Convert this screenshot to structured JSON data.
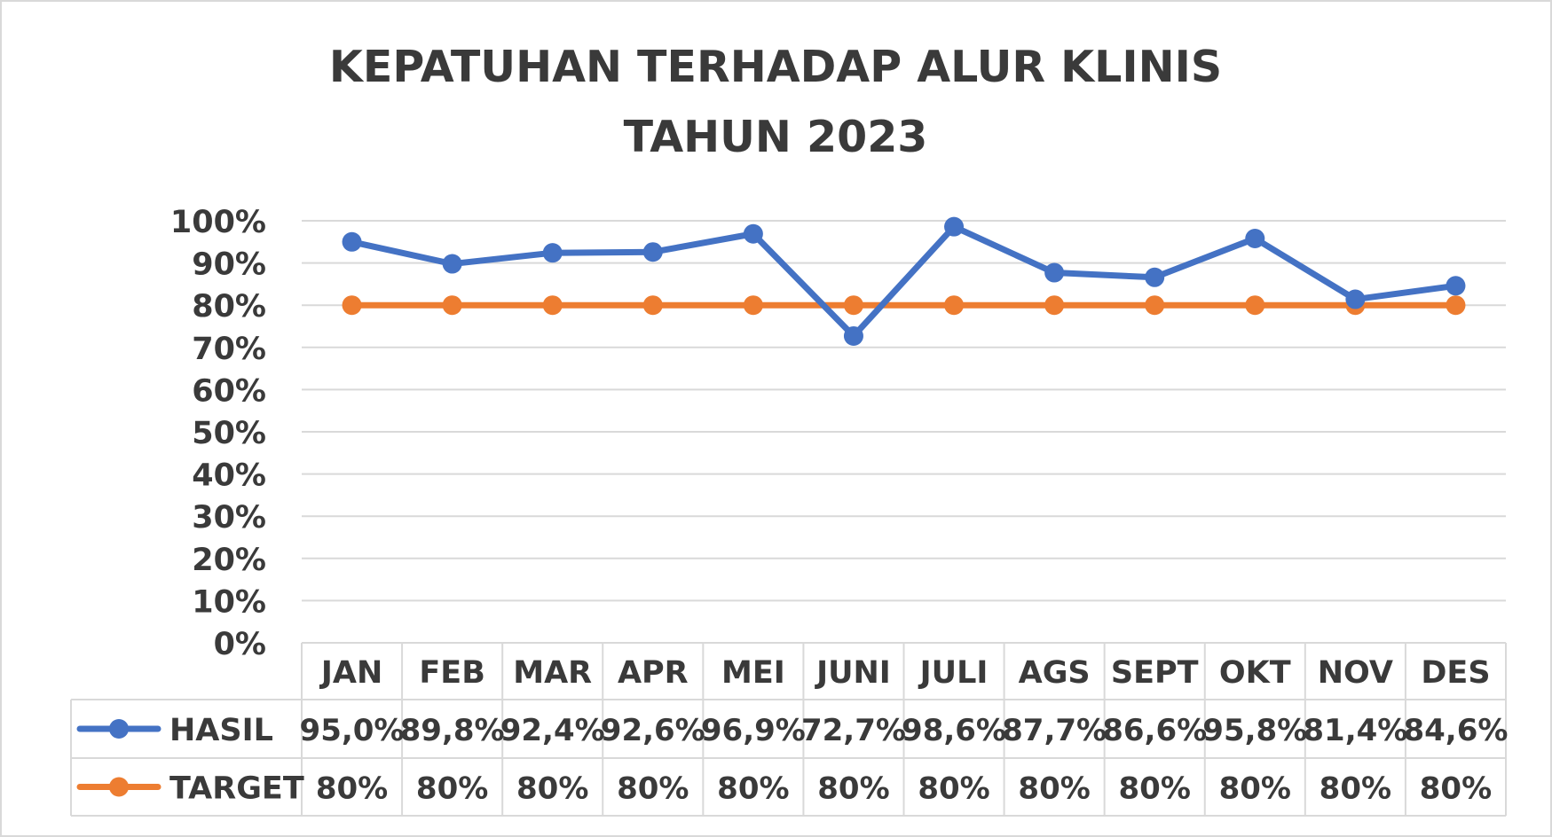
{
  "chart_data": {
    "type": "line",
    "title_line1": "KEPATUHAN TERHADAP ALUR KLINIS",
    "title_line2": "TAHUN 2023",
    "categories": [
      "JAN",
      "FEB",
      "MAR",
      "APR",
      "MEI",
      "JUNI",
      "JULI",
      "AGS",
      "SEPT",
      "OKT",
      "NOV",
      "DES"
    ],
    "y_ticks": [
      "0%",
      "10%",
      "20%",
      "30%",
      "40%",
      "50%",
      "60%",
      "70%",
      "80%",
      "90%",
      "100%"
    ],
    "ylim": [
      0,
      100
    ],
    "grid": true,
    "legend": "data-table",
    "series": [
      {
        "name": "HASIL",
        "color": "#4472C4",
        "values": [
          95.0,
          89.8,
          92.4,
          92.6,
          96.9,
          72.7,
          98.6,
          87.7,
          86.6,
          95.8,
          81.4,
          84.6
        ],
        "labels": [
          "95,0%",
          "89,8%",
          "92,4%",
          "92,6%",
          "96,9%",
          "72,7%",
          "98,6%",
          "87,7%",
          "86,6%",
          "95,8%",
          "81,4%",
          "84,6%"
        ]
      },
      {
        "name": "TARGET",
        "color": "#ED7D31",
        "values": [
          80,
          80,
          80,
          80,
          80,
          80,
          80,
          80,
          80,
          80,
          80,
          80
        ],
        "labels": [
          "80%",
          "80%",
          "80%",
          "80%",
          "80%",
          "80%",
          "80%",
          "80%",
          "80%",
          "80%",
          "80%",
          "80%"
        ]
      }
    ]
  }
}
